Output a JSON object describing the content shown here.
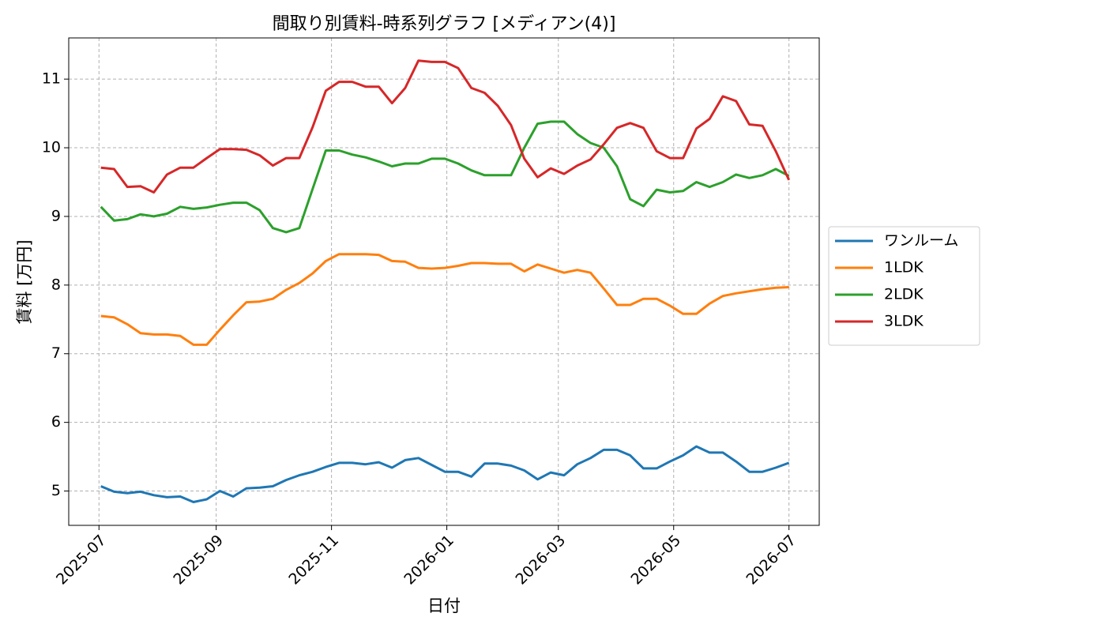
{
  "chart_data": {
    "type": "line",
    "title": "間取り別賃料-時系列グラフ [メディアン(4)]",
    "x_label": "日付",
    "y_label": "賃料 [万円]",
    "x": [
      "2025-07-02",
      "2025-07-09",
      "2025-07-16",
      "2025-07-23",
      "2025-07-30",
      "2025-08-06",
      "2025-08-13",
      "2025-08-20",
      "2025-08-27",
      "2025-09-03",
      "2025-09-10",
      "2025-09-17",
      "2025-09-24",
      "2025-10-01",
      "2025-10-08",
      "2025-10-15",
      "2025-10-22",
      "2025-10-29",
      "2025-11-05",
      "2025-11-12",
      "2025-11-19",
      "2025-11-26",
      "2025-12-03",
      "2025-12-10",
      "2025-12-17",
      "2025-12-24",
      "2025-12-31",
      "2026-01-07",
      "2026-01-14",
      "2026-01-21",
      "2026-01-28",
      "2026-02-04",
      "2026-02-11",
      "2026-02-18",
      "2026-02-25",
      "2026-03-04",
      "2026-03-11",
      "2026-03-18",
      "2026-03-25",
      "2026-04-01",
      "2026-04-08",
      "2026-04-15",
      "2026-04-22",
      "2026-04-29",
      "2026-05-06",
      "2026-05-13",
      "2026-05-20",
      "2026-05-27",
      "2026-06-03",
      "2026-06-10",
      "2026-06-17",
      "2026-06-24",
      "2026-07-01"
    ],
    "series": [
      {
        "name": "ワンルーム",
        "color": "#1f77b4",
        "values": [
          5.07,
          4.99,
          4.97,
          4.99,
          4.94,
          4.91,
          4.92,
          4.84,
          4.88,
          5.0,
          4.92,
          5.04,
          5.05,
          5.07,
          5.16,
          5.23,
          5.28,
          5.35,
          5.41,
          5.41,
          5.39,
          5.42,
          5.34,
          5.45,
          5.48,
          5.38,
          5.28,
          5.28,
          5.21,
          5.4,
          5.4,
          5.37,
          5.3,
          5.17,
          5.27,
          5.23,
          5.39,
          5.48,
          5.6,
          5.6,
          5.52,
          5.33,
          5.33,
          5.43,
          5.52,
          5.65,
          5.56,
          5.56,
          5.43,
          5.28,
          5.28,
          5.34,
          5.41
        ]
      },
      {
        "name": "1LDK",
        "color": "#ff7f0e",
        "values": [
          7.55,
          7.53,
          7.43,
          7.3,
          7.28,
          7.28,
          7.26,
          7.13,
          7.13,
          7.35,
          7.56,
          7.75,
          7.76,
          7.8,
          7.93,
          8.03,
          8.17,
          8.35,
          8.45,
          8.45,
          8.45,
          8.44,
          8.35,
          8.34,
          8.25,
          8.24,
          8.25,
          8.28,
          8.32,
          8.32,
          8.31,
          8.31,
          8.2,
          8.3,
          8.24,
          8.18,
          8.22,
          8.18,
          7.95,
          7.71,
          7.71,
          7.8,
          7.8,
          7.7,
          7.58,
          7.58,
          7.73,
          7.84,
          7.88,
          7.91,
          7.94,
          7.96,
          7.97
        ]
      },
      {
        "name": "2LDK",
        "color": "#2ca02c",
        "values": [
          9.14,
          8.94,
          8.96,
          9.03,
          9.0,
          9.04,
          9.14,
          9.11,
          9.13,
          9.17,
          9.2,
          9.2,
          9.09,
          8.83,
          8.77,
          8.83,
          9.4,
          9.96,
          9.96,
          9.9,
          9.86,
          9.8,
          9.73,
          9.77,
          9.77,
          9.84,
          9.84,
          9.77,
          9.67,
          9.6,
          9.6,
          9.6,
          10.0,
          10.35,
          10.38,
          10.38,
          10.2,
          10.07,
          10.0,
          9.73,
          9.25,
          9.15,
          9.39,
          9.35,
          9.37,
          9.5,
          9.43,
          9.5,
          9.61,
          9.56,
          9.6,
          9.69,
          9.59
        ]
      },
      {
        "name": "3LDK",
        "color": "#d62728",
        "values": [
          9.71,
          9.69,
          9.43,
          9.44,
          9.35,
          9.61,
          9.71,
          9.71,
          9.85,
          9.98,
          9.98,
          9.97,
          9.89,
          9.74,
          9.85,
          9.85,
          10.3,
          10.83,
          10.96,
          10.96,
          10.89,
          10.89,
          10.65,
          10.87,
          11.27,
          11.25,
          11.25,
          11.16,
          10.87,
          10.8,
          10.61,
          10.33,
          9.84,
          9.57,
          9.7,
          9.62,
          9.74,
          9.83,
          10.05,
          10.29,
          10.36,
          10.29,
          9.95,
          9.85,
          9.85,
          10.28,
          10.42,
          10.75,
          10.68,
          10.34,
          10.32,
          9.95,
          9.53
        ]
      }
    ],
    "xlim": [
      "2025-06-15",
      "2026-07-17"
    ],
    "xticks": [
      "2025-07",
      "2025-09",
      "2025-11",
      "2026-01",
      "2026-03",
      "2026-05",
      "2026-07"
    ],
    "ylim": [
      4.5,
      11.6
    ],
    "yticks": [
      5,
      6,
      7,
      8,
      9,
      10,
      11
    ],
    "grid": true,
    "legend": "right"
  }
}
